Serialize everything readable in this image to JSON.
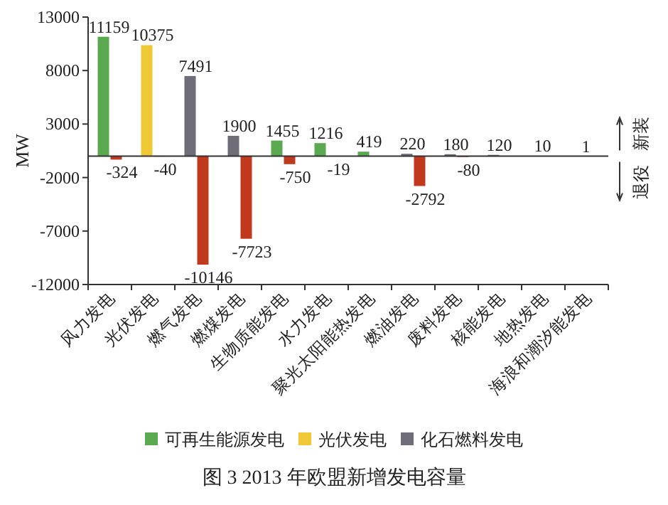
{
  "chart_data": {
    "type": "bar",
    "title": "图 3  2013 年欧盟新增发电容量",
    "ylabel": "MW",
    "categories": [
      "风力发电",
      "光伏发电",
      "燃气发电",
      "燃煤发电",
      "生物质能发电",
      "水力发电",
      "聚光太阳能热发电",
      "燃油发电",
      "废料发电",
      "核能发电",
      "地热发电",
      "海浪和潮汐能发电"
    ],
    "series": [
      {
        "name": "可再生能源发电",
        "color": "#5aa84f",
        "values": [
          11159,
          null,
          null,
          null,
          1455,
          1216,
          419,
          null,
          null,
          null,
          10,
          1
        ]
      },
      {
        "name": "光伏发电",
        "color": "#f0c735",
        "values": [
          null,
          10375,
          null,
          null,
          null,
          null,
          null,
          null,
          null,
          null,
          null,
          null
        ]
      },
      {
        "name": "化石燃料发电",
        "color": "#6e6d78",
        "values": [
          null,
          null,
          7491,
          1900,
          null,
          null,
          null,
          220,
          180,
          120,
          null,
          null
        ]
      },
      {
        "color": "#c0391c",
        "values": [
          -324,
          -40,
          -10146,
          -7723,
          -750,
          -19,
          null,
          -2792,
          -80,
          null,
          null,
          null
        ]
      }
    ],
    "ylim": [
      -12000,
      13000
    ],
    "yticks": [
      -12000,
      -7000,
      -2000,
      3000,
      8000,
      13000
    ],
    "data_labels": true,
    "legend": "bottom",
    "annotations": [
      "新装",
      "退役"
    ]
  }
}
